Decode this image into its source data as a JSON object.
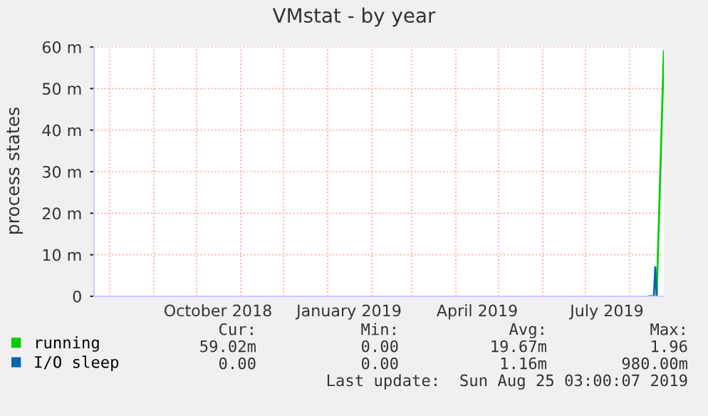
{
  "chart_data": {
    "type": "line",
    "title": "VMstat - by year",
    "ylabel": "process states",
    "xlim": [
      "2018-07-21",
      "2019-08-25"
    ],
    "ylim": [
      0,
      60
    ],
    "xticks": [
      {
        "value": "2018-08-01",
        "label": null
      },
      {
        "value": "2018-09-01",
        "label": null
      },
      {
        "value": "2018-10-01",
        "label": null
      },
      {
        "value": "2018-10-16",
        "label": "October 2018"
      },
      {
        "value": "2018-11-01",
        "label": null
      },
      {
        "value": "2018-12-01",
        "label": null
      },
      {
        "value": "2019-01-01",
        "label": null
      },
      {
        "value": "2019-01-16",
        "label": "January 2019"
      },
      {
        "value": "2019-02-01",
        "label": null
      },
      {
        "value": "2019-03-01",
        "label": null
      },
      {
        "value": "2019-04-01",
        "label": null
      },
      {
        "value": "2019-04-16",
        "label": "April 2019"
      },
      {
        "value": "2019-05-01",
        "label": null
      },
      {
        "value": "2019-06-01",
        "label": null
      },
      {
        "value": "2019-07-01",
        "label": null
      },
      {
        "value": "2019-07-16",
        "label": "July 2019"
      },
      {
        "value": "2019-08-01",
        "label": null
      }
    ],
    "yticks": [
      0,
      {
        "value": 10,
        "label": "10 m"
      },
      {
        "value": 20,
        "label": "20 m"
      },
      {
        "value": 30,
        "label": "30 m"
      },
      {
        "value": 40,
        "label": "40 m"
      },
      {
        "value": 50,
        "label": "50 m"
      },
      {
        "value": 60,
        "label": "60 m"
      }
    ],
    "grid": true,
    "legend": "bottom left",
    "series": [
      {
        "name": "running",
        "color": "#00cc00",
        "x": [
          "2019-08-15",
          "2019-08-20",
          "2019-08-25"
        ],
        "values": [
          0,
          0,
          59
        ]
      },
      {
        "name": "I/O sleep",
        "color": "#0066b3",
        "x": [
          "2019-08-15",
          "2019-08-18",
          "2019-08-19",
          "2019-08-20"
        ],
        "values": [
          0,
          0,
          7,
          0
        ]
      }
    ],
    "annotations": [
      "Cur:",
      "Min:",
      "Avg:",
      "Max:",
      "59.02m",
      "0.00",
      "19.67m",
      "1.96",
      "0.00",
      "0.00",
      "1.16m",
      "980.00m",
      "Last update:  Sun Aug 25 03:00:07 2019"
    ]
  }
}
